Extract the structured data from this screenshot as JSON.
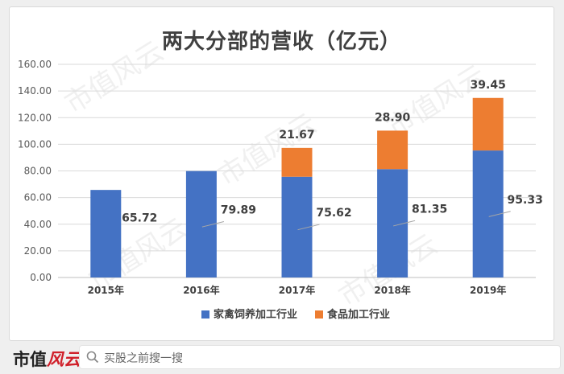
{
  "chart_data": {
    "type": "bar",
    "stacked": true,
    "title": "两大分部的营收（亿元）",
    "categories": [
      "2015年",
      "2016年",
      "2017年",
      "2018年",
      "2019年"
    ],
    "series": [
      {
        "name": "家禽饲养加工行业",
        "color": "#4472c4",
        "values": [
          65.72,
          79.89,
          75.62,
          81.35,
          95.33
        ]
      },
      {
        "name": "食品加工行业",
        "color": "#ed7d31",
        "values": [
          null,
          null,
          21.67,
          28.9,
          39.45
        ]
      }
    ],
    "labels": {
      "base": [
        "65.72",
        "79.89",
        "75.62",
        "81.35",
        "95.33"
      ],
      "top": [
        "",
        "",
        "21.67",
        "28.90",
        "39.45"
      ]
    },
    "yticks": [
      "0.00",
      "20.00",
      "40.00",
      "60.00",
      "80.00",
      "100.00",
      "120.00",
      "140.00",
      "160.00"
    ],
    "ylim": [
      0,
      160
    ],
    "grid": true,
    "legend": "bottom"
  },
  "watermark": "市值风云",
  "footer": {
    "brand_main": "市值",
    "brand_accent": "风云",
    "search_placeholder": "买股之前搜一搜"
  }
}
